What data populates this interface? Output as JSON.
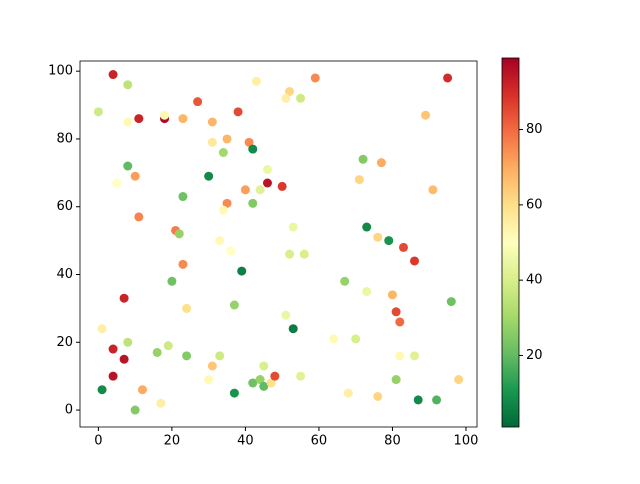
{
  "chart_data": {
    "type": "scatter",
    "x": [
      4,
      8,
      0,
      8,
      11,
      18,
      18,
      23,
      27,
      38,
      43,
      52,
      51,
      55,
      59,
      95,
      89,
      31,
      35,
      31,
      34,
      41,
      42,
      8,
      10,
      5,
      30,
      46,
      40,
      44,
      46,
      50,
      23,
      42,
      35,
      34,
      11,
      21,
      22,
      33,
      36,
      53,
      52,
      56,
      23,
      39,
      20,
      24,
      37,
      7,
      1,
      8,
      4,
      19,
      16,
      7,
      24,
      33,
      51,
      53,
      31,
      30,
      4,
      1,
      12,
      17,
      10,
      37,
      42,
      44,
      45,
      45,
      47,
      48,
      55,
      64,
      68,
      70,
      67,
      73,
      73,
      72,
      77,
      71,
      79,
      76,
      83,
      86,
      91,
      80,
      81,
      82,
      82,
      86,
      81,
      76,
      87,
      92,
      96,
      98
    ],
    "values": [
      99,
      96,
      88,
      85,
      86,
      86,
      87,
      86,
      91,
      88,
      97,
      94,
      92,
      92,
      98,
      98,
      87,
      85,
      80,
      79,
      76,
      79,
      77,
      72,
      69,
      67,
      69,
      71,
      65,
      65,
      67,
      66,
      63,
      61,
      61,
      59,
      57,
      53,
      52,
      50,
      47,
      54,
      46,
      46,
      43,
      41,
      38,
      30,
      31,
      33,
      24,
      20,
      18,
      19,
      17,
      15,
      16,
      16,
      28,
      24,
      13,
      9,
      10,
      6,
      6,
      2,
      0,
      5,
      8,
      9,
      7,
      13,
      8,
      10,
      10,
      21,
      5,
      21,
      38,
      35,
      54,
      74,
      73,
      68,
      50,
      51,
      48,
      44,
      65,
      34,
      29,
      26,
      16,
      16,
      9,
      4,
      3,
      3,
      32,
      9
    ],
    "c": [
      92,
      35,
      38,
      52,
      92,
      97,
      52,
      68,
      83,
      85,
      55,
      62,
      55,
      38,
      75,
      90,
      65,
      68,
      68,
      57,
      30,
      75,
      8,
      20,
      72,
      50,
      8,
      45,
      72,
      42,
      95,
      88,
      22,
      25,
      75,
      52,
      76,
      77,
      28,
      52,
      50,
      45,
      40,
      40,
      75,
      6,
      22,
      60,
      28,
      92,
      55,
      35,
      92,
      38,
      28,
      95,
      25,
      38,
      45,
      5,
      65,
      52,
      95,
      8,
      70,
      55,
      25,
      10,
      22,
      28,
      20,
      40,
      60,
      85,
      42,
      52,
      55,
      40,
      28,
      45,
      8,
      25,
      70,
      62,
      10,
      62,
      85,
      88,
      67,
      68,
      85,
      80,
      52,
      42,
      28,
      62,
      8,
      18,
      22,
      62
    ],
    "cmap_colors": [
      "#006837",
      "#1a9850",
      "#66bd63",
      "#a6d96a",
      "#d9ef8b",
      "#ffffbf",
      "#fee08b",
      "#fdae61",
      "#f46d43",
      "#d73027",
      "#a50026"
    ],
    "xlim": [
      -5,
      103
    ],
    "ylim": [
      -5,
      103
    ],
    "xticks": [
      0,
      20,
      40,
      60,
      80,
      100
    ],
    "yticks": [
      0,
      20,
      40,
      60,
      80,
      100
    ],
    "clim": [
      1,
      99
    ],
    "cticks": [
      20,
      40,
      60,
      80
    ]
  }
}
